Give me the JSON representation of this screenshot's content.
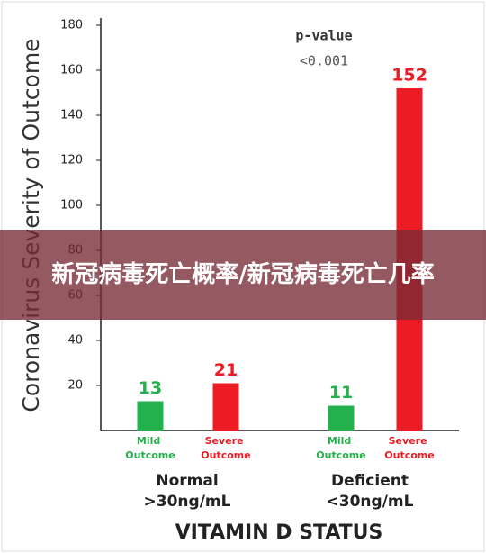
{
  "chart_data": {
    "type": "bar",
    "y_label": "Coronavirus Severity of Outcome",
    "x_label": "VITAMIN D STATUS",
    "annotation": {
      "title": "p-value",
      "text": "<0.001"
    },
    "categories": [
      "Mild Outcome",
      "Severe Outcome",
      "Mild Outcome",
      "Severe Outcome"
    ],
    "values": [
      13,
      21,
      11,
      152
    ],
    "colors": [
      "#22b14c",
      "#ed1c24",
      "#22b14c",
      "#ed1c24"
    ],
    "groups": [
      {
        "name": "Normal",
        "range": ">30ng/mL"
      },
      {
        "name": "Deficient",
        "range": "<30ng/mL"
      }
    ],
    "ylim": [
      0,
      180
    ],
    "yticks": [
      20,
      40,
      60,
      80,
      100,
      120,
      140,
      160,
      180
    ]
  },
  "banner": {
    "text": "新冠病毒死亡概率/新冠病毒死亡几率"
  }
}
